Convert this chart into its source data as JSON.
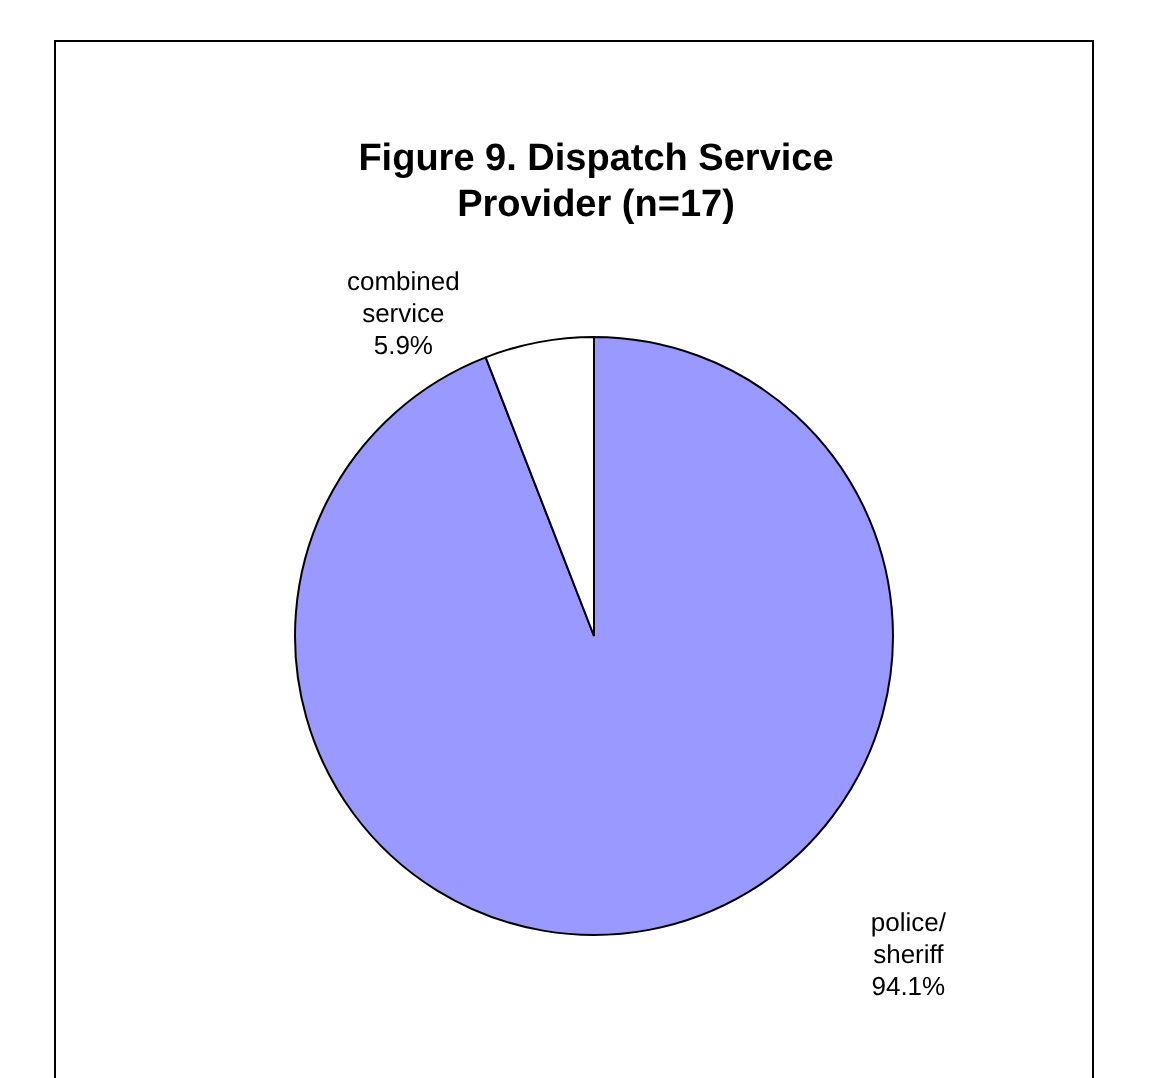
{
  "chart_data": {
    "type": "pie",
    "title": "Figure 9.  Dispatch Service Provider (n=17)",
    "categories": [
      "police/sheriff",
      "combined service"
    ],
    "values": [
      94.1,
      5.9
    ],
    "colors": [
      "#9999ff",
      "#ffffff"
    ],
    "value_labels": [
      "94.1%",
      "5.9%"
    ],
    "legend": false
  }
}
